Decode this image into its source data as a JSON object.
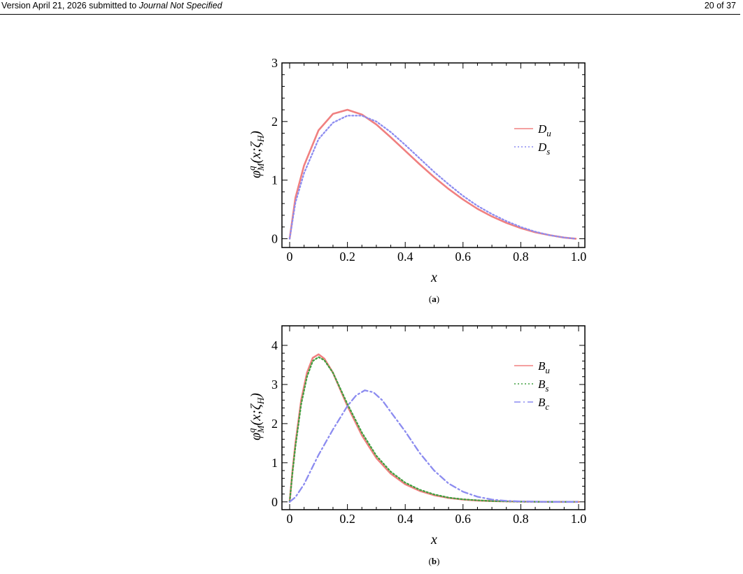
{
  "header": {
    "version_text": "Version April 21, 2026 submitted to ",
    "journal": "Journal Not Specified",
    "page": "20 of 37"
  },
  "chart_data": [
    {
      "type": "line",
      "caption_letter": "a",
      "xlabel": "x",
      "ylabel": "φ^q_M(x;ζ_H)",
      "xlim": [
        0,
        1
      ],
      "ylim": [
        -0.15,
        3
      ],
      "xticks": [
        "0",
        "0.2",
        "0.4",
        "0.6",
        "0.8",
        "1.0"
      ],
      "yticks": [
        "0",
        "1",
        "2",
        "3"
      ],
      "legend_position": "top-right",
      "series": [
        {
          "name": "D_u",
          "name_main": "D",
          "name_sub": "u",
          "color": "#f08080",
          "style": "solid",
          "x": [
            0,
            0.02,
            0.05,
            0.1,
            0.15,
            0.2,
            0.25,
            0.3,
            0.35,
            0.4,
            0.45,
            0.5,
            0.55,
            0.6,
            0.65,
            0.7,
            0.75,
            0.8,
            0.85,
            0.9,
            0.95,
            0.99
          ],
          "y": [
            0,
            0.7,
            1.25,
            1.85,
            2.13,
            2.2,
            2.12,
            1.95,
            1.73,
            1.5,
            1.27,
            1.05,
            0.85,
            0.67,
            0.51,
            0.38,
            0.27,
            0.18,
            0.11,
            0.06,
            0.02,
            0.0
          ]
        },
        {
          "name": "D_s",
          "name_main": "D",
          "name_sub": "s",
          "color": "#8c8cf0",
          "style": "dotted",
          "x": [
            0,
            0.02,
            0.05,
            0.1,
            0.15,
            0.2,
            0.25,
            0.3,
            0.35,
            0.4,
            0.45,
            0.5,
            0.55,
            0.6,
            0.65,
            0.7,
            0.75,
            0.8,
            0.85,
            0.9,
            0.95,
            0.99
          ],
          "y": [
            0,
            0.62,
            1.12,
            1.7,
            1.98,
            2.1,
            2.1,
            2.0,
            1.82,
            1.6,
            1.37,
            1.14,
            0.93,
            0.73,
            0.56,
            0.42,
            0.3,
            0.2,
            0.12,
            0.06,
            0.02,
            0.0
          ]
        }
      ]
    },
    {
      "type": "line",
      "caption_letter": "b",
      "xlabel": "x",
      "ylabel": "φ^q_M(x;ζ_H)",
      "xlim": [
        0,
        1
      ],
      "ylim": [
        -0.2,
        4.5
      ],
      "xticks": [
        "0",
        "0.2",
        "0.4",
        "0.6",
        "0.8",
        "1.0"
      ],
      "yticks": [
        "0",
        "1",
        "2",
        "3",
        "4"
      ],
      "legend_position": "top-right",
      "series": [
        {
          "name": "B_u",
          "name_main": "B",
          "name_sub": "u",
          "color": "#f08080",
          "style": "solid",
          "x": [
            0,
            0.01,
            0.02,
            0.04,
            0.06,
            0.08,
            0.1,
            0.12,
            0.15,
            0.2,
            0.25,
            0.3,
            0.35,
            0.4,
            0.45,
            0.5,
            0.55,
            0.6,
            0.65,
            0.7,
            0.8,
            0.9,
            1.0
          ],
          "y": [
            0,
            0.8,
            1.5,
            2.6,
            3.3,
            3.68,
            3.77,
            3.66,
            3.3,
            2.45,
            1.7,
            1.12,
            0.72,
            0.45,
            0.28,
            0.17,
            0.1,
            0.06,
            0.035,
            0.02,
            0.005,
            0.0,
            0.0
          ]
        },
        {
          "name": "B_s",
          "name_main": "B",
          "name_sub": "s",
          "color": "#40a040",
          "style": "dotted",
          "x": [
            0,
            0.01,
            0.02,
            0.04,
            0.06,
            0.08,
            0.1,
            0.12,
            0.15,
            0.2,
            0.25,
            0.3,
            0.35,
            0.4,
            0.45,
            0.5,
            0.55,
            0.6,
            0.65,
            0.7,
            0.8,
            0.9,
            1.0
          ],
          "y": [
            0,
            0.75,
            1.42,
            2.5,
            3.2,
            3.6,
            3.7,
            3.62,
            3.3,
            2.5,
            1.77,
            1.18,
            0.77,
            0.49,
            0.31,
            0.19,
            0.11,
            0.065,
            0.04,
            0.02,
            0.005,
            0.0,
            0.0
          ]
        },
        {
          "name": "B_c",
          "name_main": "B",
          "name_sub": "c",
          "color": "#8c8cf0",
          "style": "dashdot",
          "x": [
            0,
            0.02,
            0.05,
            0.08,
            0.1,
            0.15,
            0.2,
            0.23,
            0.26,
            0.29,
            0.32,
            0.35,
            0.4,
            0.45,
            0.5,
            0.55,
            0.6,
            0.65,
            0.7,
            0.75,
            0.8,
            0.9,
            1.0
          ],
          "y": [
            0,
            0.12,
            0.45,
            0.9,
            1.2,
            1.85,
            2.45,
            2.72,
            2.85,
            2.8,
            2.6,
            2.3,
            1.8,
            1.25,
            0.8,
            0.47,
            0.26,
            0.13,
            0.06,
            0.025,
            0.01,
            0.0,
            0.0
          ]
        }
      ]
    }
  ]
}
